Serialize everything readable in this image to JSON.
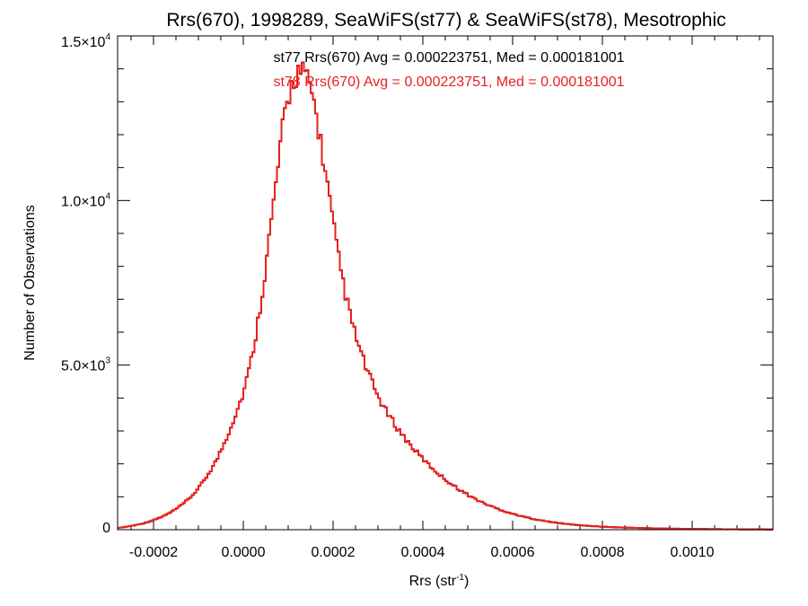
{
  "chart_data": {
    "type": "histogram",
    "title": "Rrs(670), 1998289, SeaWiFS(st77) & SeaWiFS(st78), Mesotrophic",
    "xlabel": "Rrs (str",
    "xlabel_sup": "-1",
    "xlabel_suffix": ")",
    "ylabel": "Number of Observations",
    "xlim": [
      -0.00028,
      0.00118
    ],
    "ylim": [
      0,
      15000
    ],
    "x_ticks": [
      {
        "value": -0.0002,
        "label": "-0.0002"
      },
      {
        "value": 0.0,
        "label": "0.0000"
      },
      {
        "value": 0.0002,
        "label": "0.0002"
      },
      {
        "value": 0.0004,
        "label": "0.0004"
      },
      {
        "value": 0.0006,
        "label": "0.0006"
      },
      {
        "value": 0.0008,
        "label": "0.0008"
      },
      {
        "value": 0.001,
        "label": "0.0010"
      }
    ],
    "x_minor_step": 5e-05,
    "y_ticks": [
      {
        "value": 0,
        "mantissa": "0",
        "exponent": ""
      },
      {
        "value": 5000,
        "mantissa": "5.0×10",
        "exponent": "3"
      },
      {
        "value": 10000,
        "mantissa": "1.0×10",
        "exponent": "4"
      },
      {
        "value": 15000,
        "mantissa": "1.5×10",
        "exponent": "4"
      }
    ],
    "y_minor_step": 1000,
    "annotations": [
      {
        "text": "st77 Rrs(670) Avg = 0.000223751, Med = 0.000181001",
        "color": "#000000"
      },
      {
        "text": "st78 Rrs(670) Avg = 0.000223751, Med = 0.000181001",
        "color": "#e8201f"
      }
    ],
    "series": [
      {
        "name": "st77",
        "color": "#000000",
        "bin_width": 5e-06,
        "x": [
          -0.00028,
          -0.00026,
          -0.00024,
          -0.00022,
          -0.0002,
          -0.00018,
          -0.00016,
          -0.00014,
          -0.00012,
          -0.0001,
          -8e-05,
          -6e-05,
          -4e-05,
          -2e-05,
          0.0,
          1e-05,
          2e-05,
          3e-05,
          4e-05,
          5e-05,
          6e-05,
          7e-05,
          8e-05,
          9e-05,
          0.0001,
          0.00011,
          0.00012,
          0.00013,
          0.00014,
          0.00015,
          0.00016,
          0.00017,
          0.00018,
          0.00019,
          0.0002,
          0.00021,
          0.00022,
          0.00023,
          0.00024,
          0.00025,
          0.00026,
          0.00027,
          0.00028,
          0.00029,
          0.0003,
          0.00032,
          0.00034,
          0.00036,
          0.00038,
          0.0004,
          0.00042,
          0.00044,
          0.00046,
          0.00048,
          0.0005,
          0.00052,
          0.00054,
          0.00056,
          0.00058,
          0.0006,
          0.00062,
          0.00064,
          0.00066,
          0.00068,
          0.0007,
          0.00072,
          0.00074,
          0.00076,
          0.00078,
          0.0008,
          0.00084,
          0.00088,
          0.00092,
          0.00096,
          0.001,
          0.00104,
          0.00108,
          0.00112,
          0.00116,
          0.00118
        ],
        "y": [
          50,
          90,
          140,
          200,
          290,
          400,
          540,
          720,
          950,
          1250,
          1650,
          2100,
          2700,
          3400,
          4150,
          4700,
          5300,
          6100,
          7000,
          8000,
          9100,
          10200,
          11300,
          12400,
          13100,
          13600,
          13900,
          13900,
          13700,
          13400,
          12800,
          12000,
          11100,
          10200,
          9300,
          8400,
          7700,
          7000,
          6400,
          5900,
          5450,
          5050,
          4700,
          4350,
          4050,
          3550,
          3150,
          2780,
          2450,
          2150,
          1880,
          1640,
          1420,
          1230,
          1060,
          910,
          780,
          670,
          570,
          480,
          410,
          345,
          290,
          245,
          205,
          175,
          148,
          125,
          105,
          90,
          68,
          52,
          40,
          31,
          24,
          18,
          14,
          11,
          9,
          8
        ]
      },
      {
        "name": "st78",
        "color": "#e8201f",
        "bin_width": 5e-06,
        "x": [
          -0.00028,
          -0.00026,
          -0.00024,
          -0.00022,
          -0.0002,
          -0.00018,
          -0.00016,
          -0.00014,
          -0.00012,
          -0.0001,
          -8e-05,
          -6e-05,
          -4e-05,
          -2e-05,
          0.0,
          1e-05,
          2e-05,
          3e-05,
          4e-05,
          5e-05,
          6e-05,
          7e-05,
          8e-05,
          9e-05,
          0.0001,
          0.00011,
          0.00012,
          0.00013,
          0.00014,
          0.00015,
          0.00016,
          0.00017,
          0.00018,
          0.00019,
          0.0002,
          0.00021,
          0.00022,
          0.00023,
          0.00024,
          0.00025,
          0.00026,
          0.00027,
          0.00028,
          0.00029,
          0.0003,
          0.00032,
          0.00034,
          0.00036,
          0.00038,
          0.0004,
          0.00042,
          0.00044,
          0.00046,
          0.00048,
          0.0005,
          0.00052,
          0.00054,
          0.00056,
          0.00058,
          0.0006,
          0.00062,
          0.00064,
          0.00066,
          0.00068,
          0.0007,
          0.00072,
          0.00074,
          0.00076,
          0.00078,
          0.0008,
          0.00084,
          0.00088,
          0.00092,
          0.00096,
          0.001,
          0.00104,
          0.00108,
          0.00112,
          0.00116,
          0.00118
        ],
        "y": [
          50,
          90,
          140,
          200,
          290,
          400,
          540,
          720,
          950,
          1250,
          1650,
          2100,
          2700,
          3400,
          4150,
          4700,
          5300,
          6100,
          7000,
          8000,
          9100,
          10200,
          11300,
          12400,
          13100,
          13600,
          13900,
          13900,
          13700,
          13400,
          12800,
          12000,
          11100,
          10200,
          9300,
          8400,
          7700,
          7000,
          6400,
          5900,
          5450,
          5050,
          4700,
          4350,
          4050,
          3550,
          3150,
          2780,
          2450,
          2150,
          1880,
          1640,
          1420,
          1230,
          1060,
          910,
          780,
          670,
          570,
          480,
          410,
          345,
          290,
          245,
          205,
          175,
          148,
          125,
          105,
          90,
          68,
          52,
          40,
          31,
          24,
          18,
          14,
          11,
          9,
          8
        ]
      }
    ]
  }
}
